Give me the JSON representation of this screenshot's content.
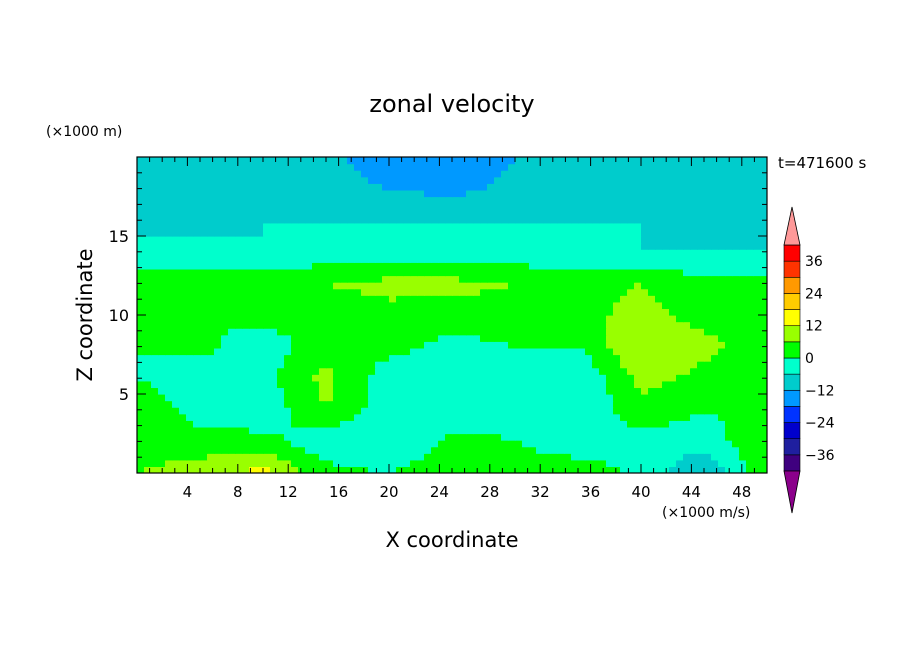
{
  "chart_data": {
    "type": "heatmap",
    "title": "zonal velocity",
    "xlabel": "X coordinate",
    "ylabel": "Z coordinate",
    "x_unit": "(×1000 m)",
    "time_label": "t=471600 s",
    "colorbar_unit": "(×1000 m/s)",
    "xlim": [
      0,
      50
    ],
    "ylim": [
      0,
      20
    ],
    "x_ticks": [
      4,
      8,
      12,
      16,
      20,
      24,
      28,
      32,
      36,
      40,
      44,
      48
    ],
    "y_ticks": [
      5,
      10,
      15
    ],
    "colorbar_ticks": [
      36,
      24,
      12,
      0,
      -12,
      -24,
      -36
    ],
    "levels": [
      -42,
      -36,
      -30,
      -24,
      -18,
      -12,
      -6,
      0,
      6,
      12,
      18,
      24,
      30,
      36,
      42
    ],
    "colors": [
      "#7f007f",
      "#3f007f",
      "#1f1f9f",
      "#0000cc",
      "#0033ff",
      "#0099ff",
      "#00cccc",
      "#00ffcc",
      "#00ff00",
      "#99ff00",
      "#ffff00",
      "#ffcc00",
      "#ff9900",
      "#ff3300",
      "#ff0000",
      "#ffaaaa"
    ],
    "underflow_color": "#8b008b",
    "overflow_color": "#ff9999",
    "grid": false,
    "field_description": "x in ×1000 m, z in ×1000 m, u in m/s; values estimated from contour colours",
    "grid_x": [
      0,
      5,
      10,
      15,
      20,
      25,
      30,
      35,
      40,
      45,
      50
    ],
    "grid_z": [
      0,
      2,
      4,
      6,
      8,
      10,
      12,
      14,
      16,
      18,
      20
    ],
    "values": [
      [
        6,
        10,
        14,
        2,
        0,
        4,
        4,
        4,
        -2,
        -12,
        6
      ],
      [
        2,
        2,
        2,
        -4,
        -6,
        2,
        0,
        -4,
        -2,
        -4,
        6
      ],
      [
        4,
        -2,
        -4,
        6,
        -4,
        -4,
        -2,
        -6,
        4,
        0,
        2
      ],
      [
        0,
        -4,
        -2,
        8,
        -4,
        -4,
        -6,
        -6,
        8,
        4,
        0
      ],
      [
        0,
        2,
        -4,
        4,
        2,
        -2,
        0,
        0,
        12,
        8,
        2
      ],
      [
        2,
        0,
        2,
        2,
        4,
        2,
        4,
        4,
        8,
        4,
        4
      ],
      [
        6,
        4,
        4,
        6,
        8,
        8,
        6,
        4,
        6,
        2,
        2
      ],
      [
        -6,
        -4,
        -6,
        -4,
        -4,
        -4,
        -4,
        -6,
        -6,
        -6,
        -6
      ],
      [
        -6,
        -8,
        -6,
        -6,
        -6,
        -6,
        -6,
        -6,
        -6,
        -8,
        -8
      ],
      [
        -8,
        -8,
        -10,
        -10,
        -12,
        -14,
        -10,
        -8,
        -8,
        -8,
        -8
      ],
      [
        -8,
        -8,
        -10,
        -10,
        -16,
        -18,
        -12,
        -8,
        -8,
        -8,
        -8
      ]
    ]
  }
}
